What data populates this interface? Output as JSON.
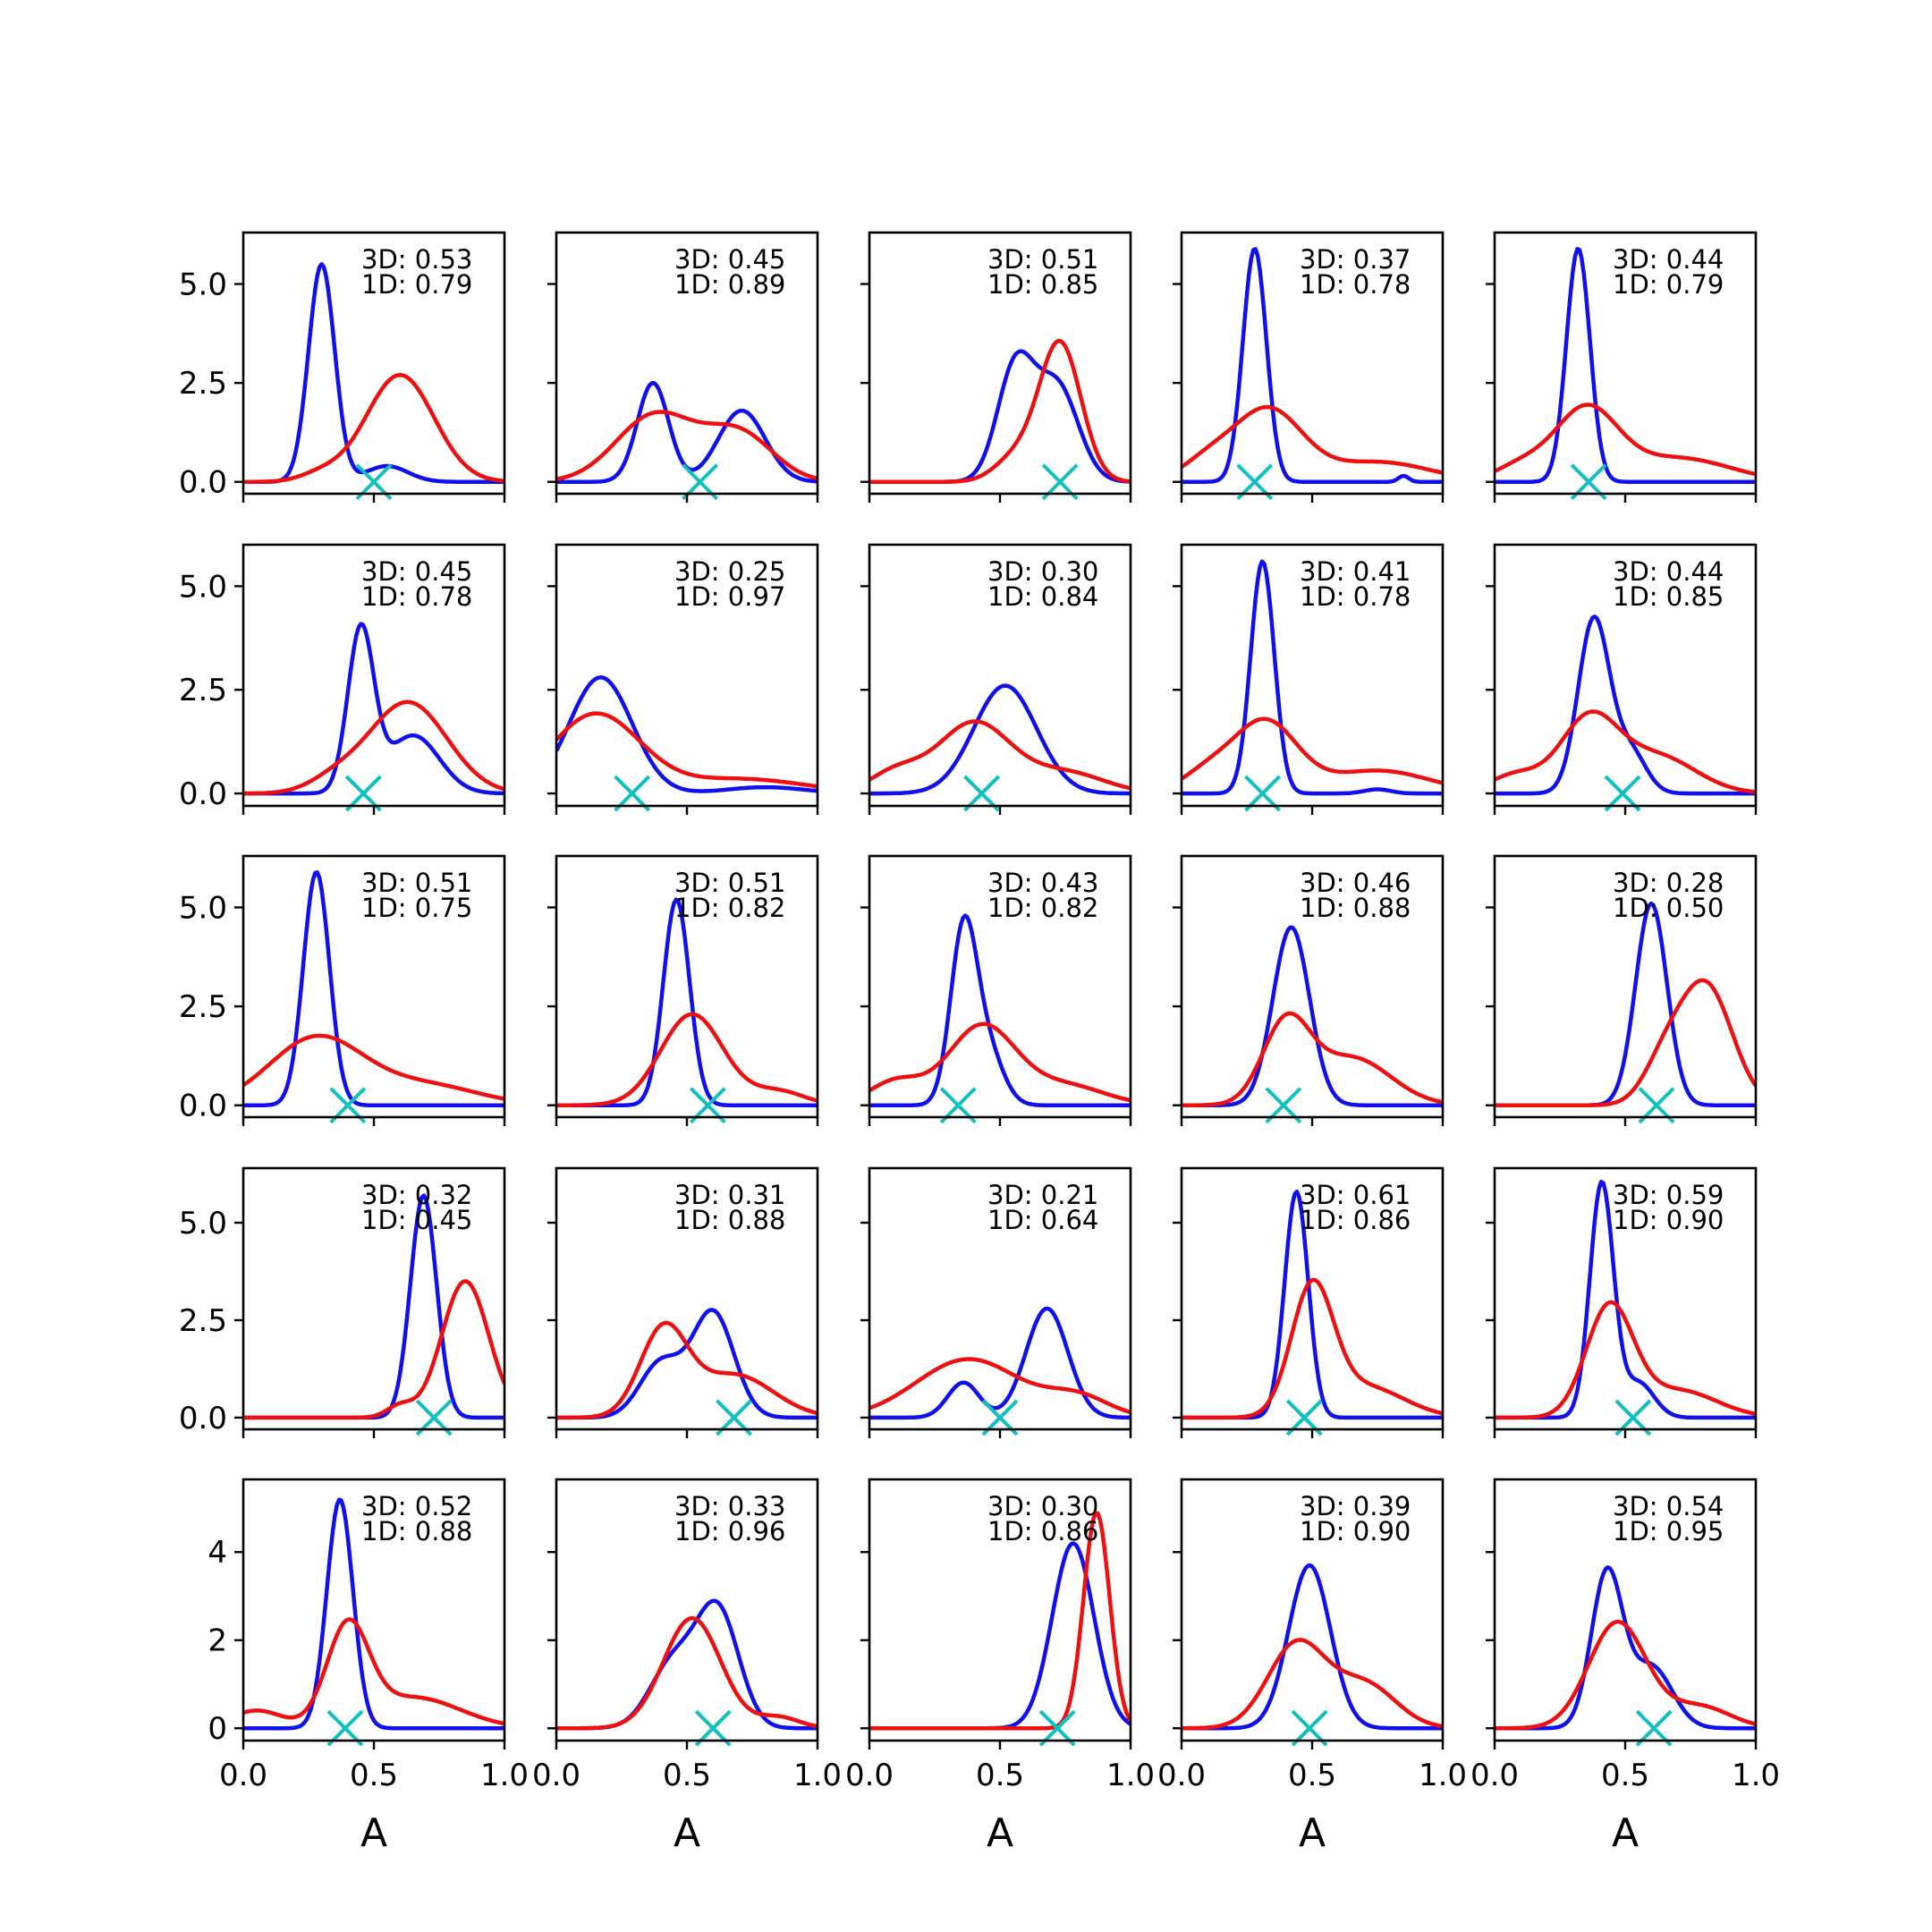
{
  "figure": {
    "grid": [
      5,
      5
    ],
    "colors": {
      "curve_3d": "#1010ee",
      "curve_1d": "#ee1010",
      "marker": "#10c0c0"
    }
  },
  "chart_data": {
    "type": "line",
    "xlabel": "A",
    "xlim": [
      0.0,
      1.0
    ],
    "xticks": [
      "0.0",
      "0.5",
      "1.0"
    ],
    "rows": [
      {
        "ylim": [
          -0.3,
          6.3
        ],
        "yticks": [
          {
            "v": 0,
            "label": "0.0"
          },
          {
            "v": 2.5,
            "label": "2.5"
          },
          {
            "v": 5,
            "label": "5.0"
          }
        ]
      },
      {
        "ylim": [
          -0.3,
          6.0
        ],
        "yticks": [
          {
            "v": 0,
            "label": "0.0"
          },
          {
            "v": 2.5,
            "label": "2.5"
          },
          {
            "v": 5,
            "label": "5.0"
          }
        ]
      },
      {
        "ylim": [
          -0.3,
          6.3
        ],
        "yticks": [
          {
            "v": 0,
            "label": "0.0"
          },
          {
            "v": 2.5,
            "label": "2.5"
          },
          {
            "v": 5,
            "label": "5.0"
          }
        ]
      },
      {
        "ylim": [
          -0.3,
          6.4
        ],
        "yticks": [
          {
            "v": 0,
            "label": "0.0"
          },
          {
            "v": 2.5,
            "label": "2.5"
          },
          {
            "v": 5,
            "label": "5.0"
          }
        ]
      },
      {
        "ylim": [
          -0.28,
          5.65
        ],
        "yticks": [
          {
            "v": 0,
            "label": "0"
          },
          {
            "v": 2,
            "label": "2"
          },
          {
            "v": 4,
            "label": "4"
          }
        ]
      }
    ],
    "panels": [
      {
        "label_3d": "3D: 0.53",
        "label_1d": "1D: 0.79",
        "marker_x": 0.5,
        "blue": [
          [
            0.3,
            0.05,
            5.5
          ],
          [
            0.55,
            0.08,
            0.4
          ]
        ],
        "red": [
          [
            0.6,
            0.13,
            2.7
          ],
          [
            0.3,
            0.08,
            0.2
          ]
        ]
      },
      {
        "label_3d": "3D: 0.45",
        "label_1d": "1D: 0.89",
        "marker_x": 0.55,
        "blue": [
          [
            0.37,
            0.06,
            2.5
          ],
          [
            0.71,
            0.09,
            1.8
          ]
        ],
        "red": [
          [
            0.38,
            0.15,
            1.7
          ],
          [
            0.7,
            0.13,
            1.2
          ]
        ]
      },
      {
        "label_3d": "3D: 0.51",
        "label_1d": "1D: 0.85",
        "marker_x": 0.73,
        "blue": [
          [
            0.56,
            0.07,
            2.9
          ],
          [
            0.72,
            0.08,
            2.4
          ]
        ],
        "red": [
          [
            0.73,
            0.08,
            3.5
          ],
          [
            0.56,
            0.08,
            0.6
          ]
        ]
      },
      {
        "label_3d": "3D: 0.37",
        "label_1d": "1D: 0.78",
        "marker_x": 0.28,
        "blue": [
          [
            0.28,
            0.045,
            5.9
          ],
          [
            0.85,
            0.02,
            0.15
          ]
        ],
        "red": [
          [
            0.33,
            0.13,
            1.8
          ],
          [
            0.1,
            0.1,
            0.5
          ],
          [
            0.75,
            0.2,
            0.5
          ]
        ]
      },
      {
        "label_3d": "3D: 0.44",
        "label_1d": "1D: 0.79",
        "marker_x": 0.36,
        "blue": [
          [
            0.32,
            0.045,
            5.9
          ]
        ],
        "red": [
          [
            0.35,
            0.12,
            1.8
          ],
          [
            0.1,
            0.1,
            0.4
          ],
          [
            0.7,
            0.2,
            0.6
          ]
        ]
      },
      {
        "label_3d": "3D: 0.45",
        "label_1d": "1D: 0.78",
        "marker_x": 0.46,
        "blue": [
          [
            0.45,
            0.05,
            3.9
          ],
          [
            0.65,
            0.1,
            1.4
          ]
        ],
        "red": [
          [
            0.63,
            0.15,
            2.2
          ],
          [
            0.35,
            0.1,
            0.3
          ]
        ]
      },
      {
        "label_3d": "3D: 0.25",
        "label_1d": "1D: 0.97",
        "marker_x": 0.29,
        "blue": [
          [
            0.17,
            0.12,
            2.8
          ],
          [
            0.8,
            0.15,
            0.15
          ]
        ],
        "red": [
          [
            0.15,
            0.17,
            1.9
          ],
          [
            0.7,
            0.25,
            0.35
          ]
        ]
      },
      {
        "label_3d": "3D: 0.30",
        "label_1d": "1D: 0.84",
        "marker_x": 0.43,
        "blue": [
          [
            0.52,
            0.12,
            2.6
          ]
        ],
        "red": [
          [
            0.4,
            0.14,
            1.7
          ],
          [
            0.1,
            0.1,
            0.5
          ],
          [
            0.75,
            0.15,
            0.5
          ]
        ]
      },
      {
        "label_3d": "3D: 0.41",
        "label_1d": "1D: 0.78",
        "marker_x": 0.31,
        "blue": [
          [
            0.31,
            0.045,
            5.6
          ],
          [
            0.75,
            0.05,
            0.1
          ]
        ],
        "red": [
          [
            0.32,
            0.12,
            1.7
          ],
          [
            0.1,
            0.1,
            0.5
          ],
          [
            0.75,
            0.2,
            0.55
          ]
        ]
      },
      {
        "label_3d": "3D: 0.44",
        "label_1d": "1D: 0.85",
        "marker_x": 0.49,
        "blue": [
          [
            0.38,
            0.06,
            4.2
          ],
          [
            0.52,
            0.06,
            1.0
          ]
        ],
        "red": [
          [
            0.36,
            0.11,
            1.75
          ],
          [
            0.62,
            0.15,
            0.9
          ],
          [
            0.08,
            0.1,
            0.45
          ]
        ]
      },
      {
        "label_3d": "3D: 0.51",
        "label_1d": "1D: 0.75",
        "marker_x": 0.4,
        "blue": [
          [
            0.28,
            0.05,
            5.9
          ]
        ],
        "red": [
          [
            0.28,
            0.18,
            1.7
          ],
          [
            0.7,
            0.2,
            0.5
          ]
        ]
      },
      {
        "label_3d": "3D: 0.51",
        "label_1d": "1D: 0.82",
        "marker_x": 0.58,
        "blue": [
          [
            0.46,
            0.05,
            5.2
          ]
        ],
        "red": [
          [
            0.52,
            0.12,
            2.3
          ],
          [
            0.85,
            0.1,
            0.35
          ]
        ]
      },
      {
        "label_3d": "3D: 0.43",
        "label_1d": "1D: 0.82",
        "marker_x": 0.34,
        "blue": [
          [
            0.36,
            0.05,
            4.3
          ],
          [
            0.45,
            0.06,
            1.4
          ]
        ],
        "red": [
          [
            0.43,
            0.13,
            2.0
          ],
          [
            0.1,
            0.1,
            0.6
          ],
          [
            0.75,
            0.15,
            0.5
          ]
        ]
      },
      {
        "label_3d": "3D: 0.46",
        "label_1d": "1D: 0.88",
        "marker_x": 0.39,
        "blue": [
          [
            0.42,
            0.07,
            4.5
          ]
        ],
        "red": [
          [
            0.4,
            0.09,
            2.0
          ],
          [
            0.65,
            0.15,
            1.2
          ]
        ]
      },
      {
        "label_3d": "3D: 0.28",
        "label_1d": "1D: 0.50",
        "marker_x": 0.62,
        "blue": [
          [
            0.6,
            0.06,
            5.1
          ]
        ],
        "red": [
          [
            0.81,
            0.1,
            3.0
          ],
          [
            0.65,
            0.08,
            1.0
          ]
        ]
      },
      {
        "label_3d": "3D: 0.32",
        "label_1d": "1D: 0.45",
        "marker_x": 0.73,
        "blue": [
          [
            0.69,
            0.05,
            5.7
          ]
        ],
        "red": [
          [
            0.85,
            0.09,
            3.5
          ],
          [
            0.6,
            0.05,
            0.3
          ]
        ]
      },
      {
        "label_3d": "3D: 0.31",
        "label_1d": "1D: 0.88",
        "marker_x": 0.68,
        "blue": [
          [
            0.6,
            0.08,
            2.7
          ],
          [
            0.4,
            0.08,
            1.4
          ]
        ],
        "red": [
          [
            0.41,
            0.09,
            2.2
          ],
          [
            0.68,
            0.15,
            1.1
          ]
        ]
      },
      {
        "label_3d": "3D: 0.21",
        "label_1d": "1D: 0.64",
        "marker_x": 0.5,
        "blue": [
          [
            0.68,
            0.08,
            2.8
          ],
          [
            0.36,
            0.06,
            0.9
          ]
        ],
        "red": [
          [
            0.38,
            0.2,
            1.5
          ],
          [
            0.8,
            0.12,
            0.5
          ]
        ]
      },
      {
        "label_3d": "3D: 0.61",
        "label_1d": "1D: 0.86",
        "marker_x": 0.47,
        "blue": [
          [
            0.44,
            0.045,
            5.8
          ]
        ],
        "red": [
          [
            0.5,
            0.08,
            3.2
          ],
          [
            0.7,
            0.15,
            0.8
          ]
        ]
      },
      {
        "label_3d": "3D: 0.59",
        "label_1d": "1D: 0.90",
        "marker_x": 0.53,
        "blue": [
          [
            0.41,
            0.045,
            6.0
          ],
          [
            0.55,
            0.06,
            0.9
          ]
        ],
        "red": [
          [
            0.44,
            0.09,
            2.8
          ],
          [
            0.7,
            0.15,
            0.7
          ]
        ]
      },
      {
        "label_3d": "3D: 0.52",
        "label_1d": "1D: 0.88",
        "marker_x": 0.39,
        "blue": [
          [
            0.37,
            0.05,
            5.2
          ]
        ],
        "red": [
          [
            0.4,
            0.08,
            2.2
          ],
          [
            0.65,
            0.18,
            0.7
          ],
          [
            0.05,
            0.1,
            0.4
          ]
        ]
      },
      {
        "label_3d": "3D: 0.33",
        "label_1d": "1D: 0.96",
        "marker_x": 0.6,
        "blue": [
          [
            0.62,
            0.08,
            2.6
          ],
          [
            0.45,
            0.09,
            1.5
          ]
        ],
        "red": [
          [
            0.52,
            0.11,
            2.5
          ],
          [
            0.85,
            0.08,
            0.25
          ]
        ]
      },
      {
        "label_3d": "3D: 0.30",
        "label_1d": "1D: 0.86",
        "marker_x": 0.72,
        "blue": [
          [
            0.78,
            0.08,
            4.2
          ]
        ],
        "red": [
          [
            0.87,
            0.05,
            4.9
          ]
        ]
      },
      {
        "label_3d": "3D: 0.39",
        "label_1d": "1D: 0.90",
        "marker_x": 0.49,
        "blue": [
          [
            0.49,
            0.08,
            3.7
          ]
        ],
        "red": [
          [
            0.44,
            0.11,
            1.9
          ],
          [
            0.7,
            0.12,
            1.0
          ]
        ]
      },
      {
        "label_3d": "3D: 0.54",
        "label_1d": "1D: 0.95",
        "marker_x": 0.61,
        "blue": [
          [
            0.43,
            0.06,
            3.5
          ],
          [
            0.6,
            0.08,
            1.4
          ]
        ],
        "red": [
          [
            0.47,
            0.11,
            2.4
          ],
          [
            0.78,
            0.12,
            0.5
          ]
        ]
      }
    ]
  }
}
